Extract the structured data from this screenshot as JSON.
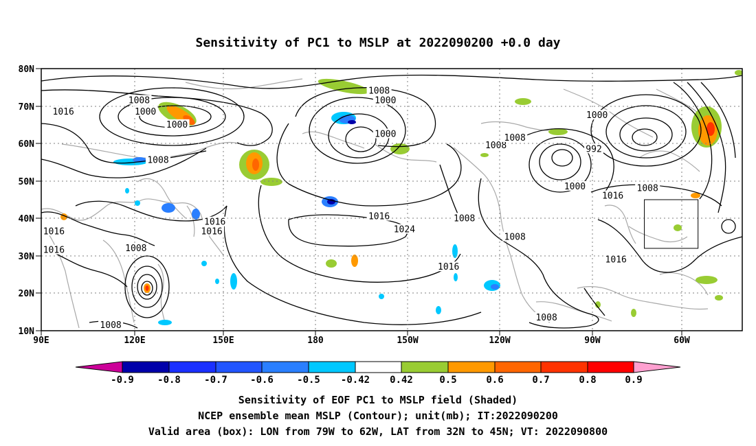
{
  "title": "Sensitivity of PC1 to MSLP at 2022090200 +0.0 day",
  "map": {
    "lat_ticks": [
      "80N",
      "70N",
      "60N",
      "50N",
      "40N",
      "30N",
      "20N",
      "10N"
    ],
    "lon_ticks": [
      "90E",
      "120E",
      "150E",
      "180",
      "150W",
      "120W",
      "90W",
      "60W"
    ],
    "lat_range": [
      10,
      80
    ],
    "lon_range": [
      "90E",
      "48W"
    ],
    "grid": "dotted",
    "valid_box": {
      "lon": [
        -79,
        -62
      ],
      "lat": [
        32,
        45
      ]
    }
  },
  "contour_labels": [
    {
      "text": "1008",
      "lon": 121,
      "lat": 71.5
    },
    {
      "text": "1000",
      "lon": 123,
      "lat": 68.5
    },
    {
      "text": "1000",
      "lon": 133,
      "lat": 65
    },
    {
      "text": "1016",
      "lon": 97,
      "lat": 68.5
    },
    {
      "text": "1008",
      "lon": 127,
      "lat": 55.5
    },
    {
      "text": "1008",
      "lon": -163,
      "lat": 74
    },
    {
      "text": "1000",
      "lon": -161,
      "lat": 71.5
    },
    {
      "text": "1000",
      "lon": -161,
      "lat": 62.5
    },
    {
      "text": "1008",
      "lon": -126,
      "lat": 59.5
    },
    {
      "text": "1008",
      "lon": -120,
      "lat": 61.5
    },
    {
      "text": "1000",
      "lon": -94,
      "lat": 67.5
    },
    {
      "text": "992",
      "lon": -95,
      "lat": 58.5
    },
    {
      "text": "1000",
      "lon": -101,
      "lat": 48.5
    },
    {
      "text": "1008",
      "lon": -78,
      "lat": 48
    },
    {
      "text": "1016",
      "lon": -89,
      "lat": 46
    },
    {
      "text": "1016",
      "lon": -163,
      "lat": 40.5
    },
    {
      "text": "1008",
      "lon": -136,
      "lat": 40
    },
    {
      "text": "1024",
      "lon": -155,
      "lat": 37
    },
    {
      "text": "1008",
      "lon": -120,
      "lat": 35
    },
    {
      "text": "1016",
      "lon": -141,
      "lat": 27
    },
    {
      "text": "1016",
      "lon": -88,
      "lat": 29
    },
    {
      "text": "1008",
      "lon": -110,
      "lat": 13.5
    },
    {
      "text": "1016",
      "lon": 94,
      "lat": 36.5
    },
    {
      "text": "1016",
      "lon": 145,
      "lat": 39
    },
    {
      "text": "1016",
      "lon": 144,
      "lat": 36.5
    },
    {
      "text": "1008",
      "lon": 120,
      "lat": 32
    },
    {
      "text": "1016",
      "lon": 94,
      "lat": 31.5
    },
    {
      "text": "1008",
      "lon": 112,
      "lat": 11.5
    }
  ],
  "colorbar": {
    "labels": [
      "-0.9",
      "-0.8",
      "-0.7",
      "-0.6",
      "-0.5",
      "-0.42",
      "0.42",
      "0.5",
      "0.6",
      "0.7",
      "0.8",
      "0.9"
    ],
    "colors": [
      "#cc0099",
      "#0000aa",
      "#1a30ff",
      "#2255ff",
      "#2a7fff",
      "#00c8ff",
      "#ffffff",
      "#99cc33",
      "#ff9900",
      "#ff6600",
      "#ff3300",
      "#ff0000",
      "#ffa0d0"
    ]
  },
  "captions": [
    "Sensitivity of EOF PC1 to MSLP field (Shaded)",
    "NCEP ensemble mean MSLP (Contour); unit(mb); IT:2022090200",
    "Valid area (box): LON from 79W to 62W, LAT from 32N to 45N; VT: 2022090800"
  ]
}
